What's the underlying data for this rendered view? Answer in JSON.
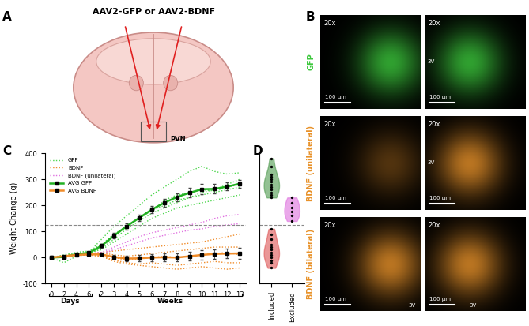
{
  "panel_labels": [
    "A",
    "B",
    "C",
    "D"
  ],
  "diagram": {
    "title": "AAV2-GFP or AAV2-BDNF",
    "target": "PVN"
  },
  "images": {
    "rows": [
      {
        "label": "GFP",
        "color": "#3cc83c"
      },
      {
        "label": "BDNF (unilateral)",
        "color": "#e8922a"
      },
      {
        "label": "BDNF (bilateral)",
        "color": "#e8922a"
      }
    ],
    "magnification": "20x",
    "scale_bar": "100 µm",
    "landmark": "3V"
  },
  "chart_data": [
    {
      "type": "line",
      "categories": [
        "0",
        "2",
        "4",
        "6",
        "2",
        "3",
        "4",
        "5",
        "6",
        "7",
        "8",
        "9",
        "10",
        "11",
        "12",
        "13"
      ],
      "x_groups": [
        {
          "label": "Days",
          "count": 4
        },
        {
          "label": "Weeks",
          "count": 12
        }
      ],
      "y_label": "Weight Change (g)",
      "ylim": [
        -100,
        400
      ],
      "yticks": [
        -100,
        0,
        100,
        200,
        300,
        400
      ],
      "reference_line": 125,
      "legend": "upper left",
      "series": [
        {
          "name": "GFP",
          "color": "#4cd64c",
          "line_style": "dotted",
          "lines": [
            [
              0,
              5,
              15,
              20,
              70,
              120,
              160,
              200,
              240,
              270,
              300,
              330,
              350,
              330,
              320,
              325
            ],
            [
              0,
              -20,
              5,
              12,
              40,
              80,
              120,
              150,
              180,
              200,
              220,
              230,
              250,
              260,
              280,
              300
            ],
            [
              0,
              10,
              20,
              25,
              50,
              90,
              120,
              150,
              180,
              220,
              240,
              250,
              260,
              255,
              270,
              280
            ],
            [
              0,
              8,
              15,
              20,
              30,
              60,
              90,
              120,
              150,
              170,
              190,
              200,
              210,
              220,
              230,
              240
            ],
            [
              0,
              5,
              12,
              18,
              35,
              70,
              110,
              140,
              170,
              190,
              210,
              230,
              240,
              250,
              260,
              270
            ]
          ]
        },
        {
          "name": "BDNF",
          "color": "#f08c2a",
          "line_style": "dotted",
          "lines": [
            [
              0,
              5,
              10,
              15,
              20,
              25,
              30,
              35,
              40,
              45,
              50,
              55,
              60,
              70,
              80,
              90
            ],
            [
              0,
              8,
              12,
              15,
              18,
              10,
              5,
              10,
              15,
              20,
              25,
              30,
              35,
              40,
              40,
              40
            ],
            [
              0,
              5,
              10,
              12,
              10,
              0,
              -10,
              -5,
              0,
              5,
              0,
              5,
              10,
              15,
              20,
              10
            ],
            [
              0,
              3,
              8,
              10,
              5,
              -10,
              -20,
              -25,
              -20,
              -25,
              -30,
              -25,
              -20,
              -15,
              -20,
              -20
            ],
            [
              0,
              5,
              8,
              10,
              5,
              -15,
              -25,
              -30,
              -35,
              -40,
              -45,
              -40,
              -35,
              -40,
              -45,
              -40
            ]
          ]
        },
        {
          "name": "BDNF (unilateral)",
          "color": "#e070e0",
          "line_style": "dotted",
          "lines": [
            [
              0,
              5,
              10,
              15,
              20,
              40,
              60,
              80,
              95,
              105,
              115,
              125,
              135,
              150,
              160,
              165
            ],
            [
              0,
              5,
              10,
              12,
              15,
              30,
              45,
              60,
              75,
              85,
              95,
              105,
              110,
              120,
              125,
              130
            ]
          ]
        },
        {
          "name": "AVG GFP",
          "color": "#22b022",
          "marker": "square",
          "line_style": "solid",
          "values": [
            0,
            2,
            13,
            18,
            45,
            84,
            120,
            152,
            184,
            210,
            232,
            248,
            262,
            263,
            272,
            283
          ],
          "errors": [
            0,
            5,
            3,
            2,
            7,
            10,
            12,
            12,
            13,
            15,
            15,
            18,
            20,
            18,
            15,
            15
          ]
        },
        {
          "name": "AVG BDNF",
          "color": "#f08c2a",
          "marker": "square",
          "line_style": "solid",
          "values": [
            0,
            5,
            10,
            12,
            12,
            2,
            -4,
            -3,
            0,
            1,
            0,
            5,
            10,
            14,
            15,
            16
          ],
          "errors": [
            0,
            2,
            2,
            2,
            5,
            8,
            10,
            12,
            13,
            14,
            15,
            16,
            17,
            18,
            18,
            20
          ]
        }
      ]
    },
    {
      "type": "violin",
      "categories": [
        "Included",
        "Excluded"
      ],
      "ylim": [
        -100,
        400
      ],
      "reference_line": 125,
      "tick_labels": "x",
      "groups": [
        {
          "category": "Included",
          "color": "#5aa05a",
          "values": [
            240,
            260,
            280,
            300,
            320,
            350,
            270,
            290,
            310,
            250,
            380,
            230
          ]
        },
        {
          "category": "Included",
          "color": "#e06060",
          "values": [
            -40,
            -20,
            0,
            10,
            20,
            30,
            50,
            70,
            90,
            110,
            -10,
            40
          ]
        },
        {
          "category": "Excluded",
          "color": "#e07ae0",
          "values": [
            140,
            160,
            175,
            190,
            210,
            230
          ]
        }
      ]
    }
  ]
}
